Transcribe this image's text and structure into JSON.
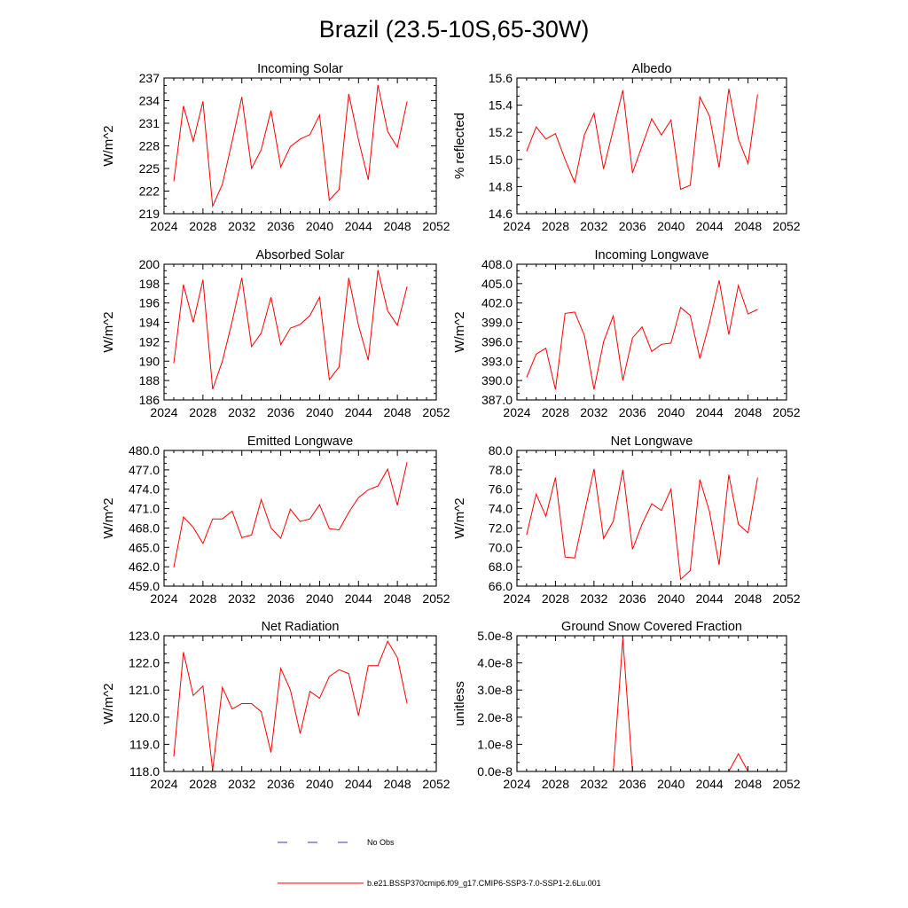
{
  "title": "Brazil (23.5-10S,65-30W)",
  "legend": [
    {
      "label": "No Obs",
      "color": "#3333cc",
      "dash": "11 23"
    },
    {
      "label": "b.e21.BSSP370cmip6.f09_g17.CMIP6-SSP3-7.0-SSP1-2.6Lu.001",
      "color": "#ff0000",
      "dash": ""
    }
  ],
  "chart_data": [
    {
      "type": "line",
      "title": "Incoming Solar",
      "xlabel": "",
      "ylabel": "W/m^2",
      "xlim": [
        2024,
        2052
      ],
      "ylim": [
        219,
        237
      ],
      "xticks": [
        2024,
        2028,
        2032,
        2036,
        2040,
        2044,
        2048,
        2052
      ],
      "yticks": [
        "219",
        "222",
        "225",
        "228",
        "231",
        "234",
        "237"
      ],
      "color": "#ff0000",
      "x": [
        2025,
        2026,
        2027,
        2028,
        2029,
        2030,
        2031,
        2032,
        2033,
        2034,
        2035,
        2036,
        2037,
        2038,
        2039,
        2040,
        2041,
        2042,
        2043,
        2044,
        2045,
        2046,
        2047,
        2048,
        2049
      ],
      "series": [
        {
          "values": [
            223.3,
            233.3,
            228.6,
            233.9,
            220.0,
            222.9,
            228.6,
            234.5,
            225.0,
            227.5,
            232.7,
            225.2,
            227.9,
            228.9,
            229.5,
            232.1,
            220.8,
            222.2,
            234.9,
            228.8,
            223.5,
            236.1,
            229.9,
            227.8,
            233.9
          ]
        }
      ]
    },
    {
      "type": "line",
      "title": "Albedo",
      "xlabel": "",
      "ylabel": "% reflected",
      "xlim": [
        2024,
        2052
      ],
      "ylim": [
        14.6,
        15.6
      ],
      "xticks": [
        2024,
        2028,
        2032,
        2036,
        2040,
        2044,
        2048,
        2052
      ],
      "yticks": [
        "14.6",
        "14.8",
        "15.0",
        "15.2",
        "15.4",
        "15.6"
      ],
      "color": "#ff0000",
      "x": [
        2025,
        2026,
        2027,
        2028,
        2029,
        2030,
        2031,
        2032,
        2033,
        2034,
        2035,
        2036,
        2037,
        2038,
        2039,
        2040,
        2041,
        2042,
        2043,
        2044,
        2045,
        2046,
        2047,
        2048,
        2049
      ],
      "series": [
        {
          "values": [
            15.06,
            15.24,
            15.15,
            15.19,
            15.0,
            14.83,
            15.18,
            15.34,
            14.93,
            15.22,
            15.51,
            14.9,
            15.1,
            15.3,
            15.18,
            15.29,
            14.78,
            14.81,
            15.46,
            15.32,
            14.94,
            15.52,
            15.15,
            14.97,
            15.48
          ]
        }
      ]
    },
    {
      "type": "line",
      "title": "Absorbed Solar",
      "xlabel": "",
      "ylabel": "W/m^2",
      "xlim": [
        2024,
        2052
      ],
      "ylim": [
        186,
        200
      ],
      "xticks": [
        2024,
        2028,
        2032,
        2036,
        2040,
        2044,
        2048,
        2052
      ],
      "yticks": [
        "186",
        "188",
        "190",
        "192",
        "194",
        "196",
        "198",
        "200"
      ],
      "color": "#ff0000",
      "x": [
        2025,
        2026,
        2027,
        2028,
        2029,
        2030,
        2031,
        2032,
        2033,
        2034,
        2035,
        2036,
        2037,
        2038,
        2039,
        2040,
        2041,
        2042,
        2043,
        2044,
        2045,
        2046,
        2047,
        2048,
        2049
      ],
      "series": [
        {
          "values": [
            189.8,
            197.9,
            194.0,
            198.4,
            187.1,
            190.0,
            194.1,
            198.6,
            191.5,
            192.9,
            196.6,
            191.7,
            193.4,
            193.8,
            194.7,
            196.6,
            188.1,
            189.4,
            198.6,
            193.7,
            190.1,
            199.4,
            195.2,
            193.7,
            197.7
          ]
        }
      ]
    },
    {
      "type": "line",
      "title": "Incoming Longwave",
      "xlabel": "",
      "ylabel": "W/m^2",
      "xlim": [
        2024,
        2052
      ],
      "ylim": [
        387,
        408
      ],
      "xticks": [
        2024,
        2028,
        2032,
        2036,
        2040,
        2044,
        2048,
        2052
      ],
      "yticks": [
        "387.0",
        "390.0",
        "393.0",
        "396.0",
        "399.0",
        "402.0",
        "405.0",
        "408.0"
      ],
      "color": "#ff0000",
      "x": [
        2025,
        2026,
        2027,
        2028,
        2029,
        2030,
        2031,
        2032,
        2033,
        2034,
        2035,
        2036,
        2037,
        2038,
        2039,
        2040,
        2041,
        2042,
        2043,
        2044,
        2045,
        2046,
        2047,
        2048,
        2049
      ],
      "series": [
        {
          "values": [
            390.5,
            394.1,
            395.0,
            388.6,
            400.4,
            400.6,
            397.0,
            388.6,
            396.0,
            400.0,
            390.0,
            396.6,
            398.3,
            394.5,
            395.6,
            395.8,
            401.3,
            400.1,
            393.4,
            398.9,
            405.5,
            397.1,
            404.7,
            400.3,
            401.0
          ]
        }
      ]
    },
    {
      "type": "line",
      "title": "Emitted Longwave",
      "xlabel": "",
      "ylabel": "W/m^2",
      "xlim": [
        2024,
        2052
      ],
      "ylim": [
        459,
        480
      ],
      "xticks": [
        2024,
        2028,
        2032,
        2036,
        2040,
        2044,
        2048,
        2052
      ],
      "yticks": [
        "459.0",
        "462.0",
        "465.0",
        "468.0",
        "471.0",
        "474.0",
        "477.0",
        "480.0"
      ],
      "color": "#ff0000",
      "x": [
        2025,
        2026,
        2027,
        2028,
        2029,
        2030,
        2031,
        2032,
        2033,
        2034,
        2035,
        2036,
        2037,
        2038,
        2039,
        2040,
        2041,
        2042,
        2043,
        2044,
        2045,
        2046,
        2047,
        2048,
        2049
      ],
      "series": [
        {
          "values": [
            461.9,
            469.7,
            468.1,
            465.6,
            469.4,
            469.4,
            470.6,
            466.5,
            466.9,
            472.4,
            468.0,
            466.4,
            470.9,
            469.0,
            469.4,
            471.6,
            467.9,
            467.7,
            470.4,
            472.7,
            473.9,
            474.5,
            477.1,
            471.5,
            478.2
          ]
        }
      ]
    },
    {
      "type": "line",
      "title": "Net Longwave",
      "xlabel": "",
      "ylabel": "W/m^2",
      "xlim": [
        2024,
        2052
      ],
      "ylim": [
        66,
        80
      ],
      "xticks": [
        2024,
        2028,
        2032,
        2036,
        2040,
        2044,
        2048,
        2052
      ],
      "yticks": [
        "66.0",
        "68.0",
        "70.0",
        "72.0",
        "74.0",
        "76.0",
        "78.0",
        "80.0"
      ],
      "color": "#ff0000",
      "x": [
        2025,
        2026,
        2027,
        2028,
        2029,
        2030,
        2031,
        2032,
        2033,
        2034,
        2035,
        2036,
        2037,
        2038,
        2039,
        2040,
        2041,
        2042,
        2043,
        2044,
        2045,
        2046,
        2047,
        2048,
        2049
      ],
      "series": [
        {
          "values": [
            71.3,
            75.5,
            73.2,
            77.2,
            69.0,
            68.9,
            73.5,
            78.1,
            70.9,
            72.7,
            78.0,
            69.8,
            72.4,
            74.5,
            73.8,
            76.0,
            66.7,
            67.6,
            77.0,
            73.7,
            68.2,
            77.5,
            72.4,
            71.5,
            77.2
          ]
        }
      ]
    },
    {
      "type": "line",
      "title": "Net Radiation",
      "xlabel": "",
      "ylabel": "W/m^2",
      "xlim": [
        2024,
        2052
      ],
      "ylim": [
        118,
        123
      ],
      "xticks": [
        2024,
        2028,
        2032,
        2036,
        2040,
        2044,
        2048,
        2052
      ],
      "yticks": [
        "118.0",
        "119.0",
        "120.0",
        "121.0",
        "122.0",
        "123.0"
      ],
      "color": "#ff0000",
      "x": [
        2025,
        2026,
        2027,
        2028,
        2029,
        2030,
        2031,
        2032,
        2033,
        2034,
        2035,
        2036,
        2037,
        2038,
        2039,
        2040,
        2041,
        2042,
        2043,
        2044,
        2045,
        2046,
        2047,
        2048,
        2049
      ],
      "series": [
        {
          "values": [
            118.55,
            122.4,
            120.8,
            121.15,
            118.05,
            121.1,
            120.3,
            120.5,
            120.5,
            120.2,
            118.7,
            121.8,
            121.0,
            119.4,
            120.95,
            120.7,
            121.5,
            121.75,
            121.6,
            120.05,
            121.9,
            121.9,
            122.8,
            122.2,
            120.5
          ]
        }
      ]
    },
    {
      "type": "line",
      "title": "Ground Snow Covered Fraction",
      "xlabel": "",
      "ylabel": "unitless",
      "xlim": [
        2024,
        2052
      ],
      "ylim": [
        0,
        5e-08
      ],
      "xticks": [
        2024,
        2028,
        2032,
        2036,
        2040,
        2044,
        2048,
        2052
      ],
      "yticks": [
        "0.0e-8",
        "1.0e-8",
        "2.0e-8",
        "3.0e-8",
        "4.0e-8",
        "5.0e-8"
      ],
      "color": "#ff0000",
      "x": [
        2025,
        2026,
        2027,
        2028,
        2029,
        2030,
        2031,
        2032,
        2033,
        2034,
        2035,
        2036,
        2037,
        2038,
        2039,
        2040,
        2041,
        2042,
        2043,
        2044,
        2045,
        2046,
        2047,
        2048,
        2049
      ],
      "series": [
        {
          "values": [
            0,
            0,
            0,
            0,
            0,
            0,
            0,
            0,
            0,
            0,
            4.9e-08,
            0,
            0,
            0,
            0,
            0,
            0,
            0,
            0,
            0,
            0,
            0,
            6.5e-09,
            0,
            0
          ]
        }
      ]
    }
  ]
}
